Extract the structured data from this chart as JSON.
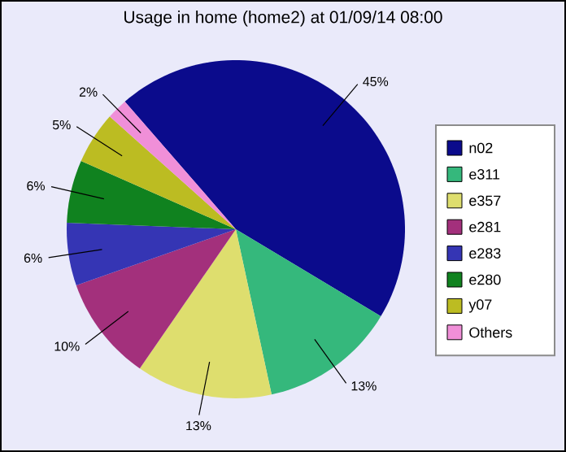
{
  "chart_data": {
    "type": "pie",
    "title": "Usage in home (home2) at 01/09/14 08:00",
    "categories": [
      "n02",
      "e311",
      "e357",
      "e281",
      "e283",
      "e280",
      "y07",
      "Others"
    ],
    "values": [
      45,
      13,
      13,
      10,
      6,
      6,
      5,
      2
    ],
    "colors": [
      "#0b0b8c",
      "#35b87c",
      "#dede6e",
      "#a3307c",
      "#3535b4",
      "#10821f",
      "#bcbc22",
      "#f08fd8"
    ],
    "value_labels": [
      "45%",
      "13%",
      "13%",
      "10%",
      "6%",
      "6%",
      "5%",
      "2%"
    ],
    "legend": "right"
  }
}
